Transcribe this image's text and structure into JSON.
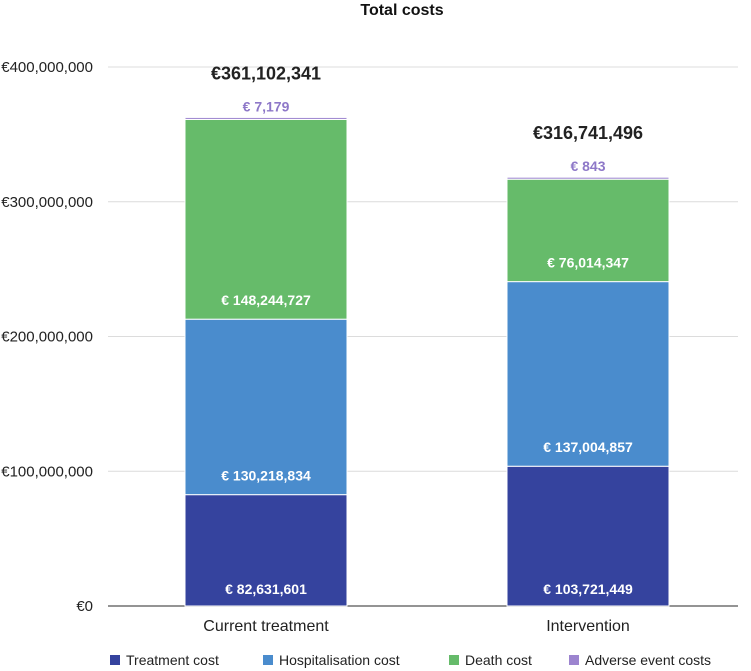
{
  "chart_data": {
    "type": "bar",
    "stacked": true,
    "title": "Total costs",
    "categories": [
      "Current treatment",
      "Intervention"
    ],
    "ylim": [
      0,
      400000000
    ],
    "yticks": [
      0,
      100000000,
      200000000,
      300000000,
      400000000
    ],
    "ytick_labels": [
      "€0",
      "€100,000,000",
      "€200,000,000",
      "€300,000,000",
      "€400,000,000"
    ],
    "grid": true,
    "legend_position": "bottom",
    "totals": [
      361102341,
      316741496
    ],
    "total_labels": [
      "€361,102,341",
      "€316,741,496"
    ],
    "series": [
      {
        "name": "Treatment cost",
        "color": "#35439e",
        "values": [
          82631601,
          103721449
        ],
        "labels": [
          "€ 82,631,601",
          "€ 103,721,449"
        ]
      },
      {
        "name": "Hospitalisation cost",
        "color": "#4a8ccd",
        "values": [
          130218834,
          137004857
        ],
        "labels": [
          "€ 130,218,834",
          "€ 137,004,857"
        ]
      },
      {
        "name": "Death cost",
        "color": "#66bb6a",
        "values": [
          148244727,
          76014347
        ],
        "labels": [
          "€ 148,244,727",
          "€ 76,014,347"
        ]
      },
      {
        "name": "Adverse event costs",
        "color": "#9c84cf",
        "values": [
          7179,
          843
        ],
        "labels": [
          "€ 7,179",
          "€ 843"
        ]
      }
    ]
  }
}
